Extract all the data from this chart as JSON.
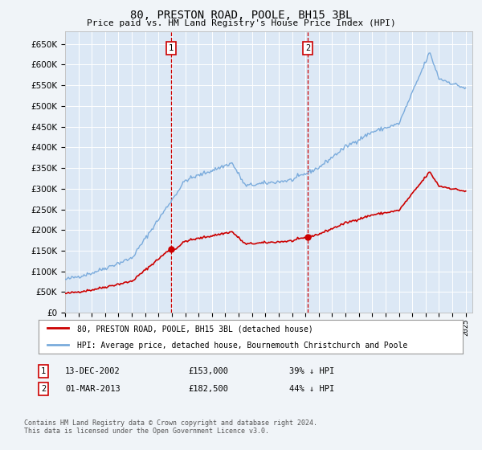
{
  "title": "80, PRESTON ROAD, POOLE, BH15 3BL",
  "subtitle": "Price paid vs. HM Land Registry's House Price Index (HPI)",
  "background_color": "#f0f4f8",
  "plot_bg_color": "#dce8f5",
  "grid_color": "#ffffff",
  "ylim": [
    0,
    680000
  ],
  "yticks": [
    0,
    50000,
    100000,
    150000,
    200000,
    250000,
    300000,
    350000,
    400000,
    450000,
    500000,
    550000,
    600000,
    650000
  ],
  "hpi_color": "#7aabdc",
  "sale_color": "#cc0000",
  "vline_color": "#cc0000",
  "sale1_date_num": 2002.95,
  "sale2_date_num": 2013.17,
  "sale1_price": 153000,
  "sale2_price": 182500,
  "legend_line1": "80, PRESTON ROAD, POOLE, BH15 3BL (detached house)",
  "legend_line2": "HPI: Average price, detached house, Bournemouth Christchurch and Poole",
  "footnote": "Contains HM Land Registry data © Crown copyright and database right 2024.\nThis data is licensed under the Open Government Licence v3.0.",
  "xmin": 1995,
  "xmax": 2025.5
}
